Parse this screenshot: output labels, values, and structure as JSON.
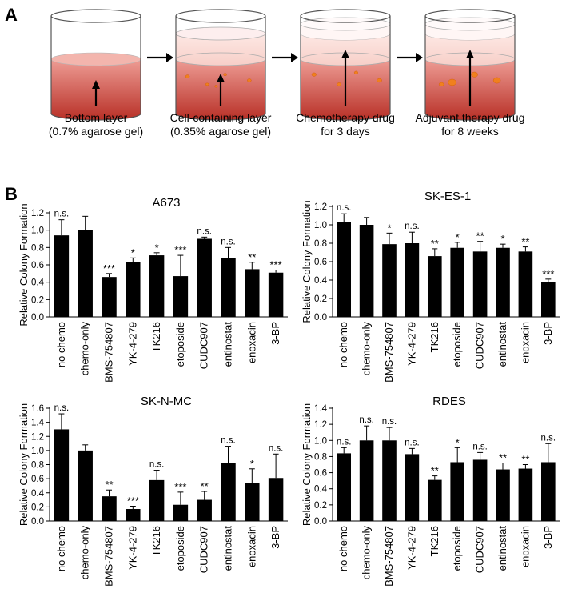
{
  "panel_a": {
    "letter": "A",
    "steps": [
      {
        "line1": "Bottom layer",
        "line2": "(0.7% agarose gel)"
      },
      {
        "line1": "Cell-containing layer",
        "line2": "(0.35% agarose gel)"
      },
      {
        "line1": "Chemotherapy drug",
        "line2": "for 3 days"
      },
      {
        "line1": "Adjuvant therapy drug",
        "line2": "for 8 weeks"
      }
    ]
  },
  "panel_b": {
    "letter": "B"
  },
  "colors": {
    "bar": "#000000",
    "gel_dark": "#c0392b",
    "gel_light": "#f6c9c2",
    "colony": "#f0801e"
  },
  "chart_data": [
    {
      "type": "bar",
      "title": "A673",
      "ylabel": "Relative Colony Formation",
      "xlabel": "",
      "ylim": [
        0,
        1.2
      ],
      "yticks": [
        "0.0",
        "0.2",
        "0.4",
        "0.6",
        "0.8",
        "1.0",
        "1.2"
      ],
      "categories": [
        "no chemo",
        "chemo-only",
        "BMS-754807",
        "YK-4-279",
        "TK216",
        "etoposide",
        "CUDC907",
        "entinostat",
        "enoxacin",
        "3-BP"
      ],
      "values": [
        0.94,
        1.0,
        0.46,
        0.63,
        0.71,
        0.47,
        0.9,
        0.68,
        0.55,
        0.51
      ],
      "errors": [
        0.18,
        0.16,
        0.04,
        0.05,
        0.03,
        0.24,
        0.02,
        0.12,
        0.08,
        0.03
      ],
      "significance": [
        "n.s.",
        "",
        "***",
        "*",
        "*",
        "***",
        "n.s.",
        "n.s.",
        "**",
        "***"
      ]
    },
    {
      "type": "bar",
      "title": "SK-ES-1",
      "ylabel": "Relative Colony Formation",
      "xlabel": "",
      "ylim": [
        0,
        1.2
      ],
      "yticks": [
        "0.0",
        "0.2",
        "0.4",
        "0.6",
        "0.8",
        "1.0",
        "1.2"
      ],
      "categories": [
        "no chemo",
        "chemo-only",
        "BMS-754807",
        "YK-4-279",
        "TK216",
        "etoposide",
        "CUDC907",
        "entinostat",
        "enoxacin",
        "3-BP"
      ],
      "values": [
        1.03,
        1.0,
        0.79,
        0.8,
        0.66,
        0.75,
        0.71,
        0.75,
        0.71,
        0.38
      ],
      "errors": [
        0.09,
        0.08,
        0.12,
        0.12,
        0.08,
        0.06,
        0.11,
        0.04,
        0.05,
        0.03
      ],
      "significance": [
        "n.s.",
        "",
        "*",
        "n.s.",
        "**",
        "*",
        "**",
        "*",
        "**",
        "***"
      ]
    },
    {
      "type": "bar",
      "title": "SK-N-MC",
      "ylabel": "Relative Colony Formation",
      "xlabel": "",
      "ylim": [
        0,
        1.6
      ],
      "yticks": [
        "0.0",
        "0.2",
        "0.4",
        "0.6",
        "0.8",
        "1.0",
        "1.2",
        "1.4",
        "1.6"
      ],
      "categories": [
        "no chemo",
        "chemo-only",
        "BMS-754807",
        "YK-4-279",
        "TK216",
        "etoposide",
        "CUDC907",
        "entinostat",
        "enoxacin",
        "3-BP"
      ],
      "values": [
        1.3,
        1.0,
        0.35,
        0.17,
        0.58,
        0.23,
        0.3,
        0.82,
        0.54,
        0.61
      ],
      "errors": [
        0.22,
        0.08,
        0.09,
        0.04,
        0.14,
        0.18,
        0.12,
        0.24,
        0.2,
        0.34
      ],
      "significance": [
        "n.s.",
        "",
        "**",
        "***",
        "n.s.",
        "***",
        "**",
        "n.s.",
        "*",
        "n.s."
      ]
    },
    {
      "type": "bar",
      "title": "RDES",
      "ylabel": "Relative Colony Formation",
      "xlabel": "",
      "ylim": [
        0,
        1.4
      ],
      "yticks": [
        "0.0",
        "0.2",
        "0.4",
        "0.6",
        "0.8",
        "1.0",
        "1.2",
        "1.4"
      ],
      "categories": [
        "no chemo",
        "chemo-only",
        "BMS-754807",
        "YK-4-279",
        "TK216",
        "etoposide",
        "CUDC907",
        "entinostat",
        "enoxacin",
        "3-BP"
      ],
      "values": [
        0.84,
        1.0,
        1.0,
        0.83,
        0.51,
        0.73,
        0.76,
        0.64,
        0.65,
        0.73
      ],
      "errors": [
        0.07,
        0.18,
        0.16,
        0.07,
        0.05,
        0.18,
        0.09,
        0.08,
        0.05,
        0.23
      ],
      "significance": [
        "n.s.",
        "n.s.",
        "n.s.",
        "n.s.",
        "**",
        "*",
        "n.s.",
        "**",
        "**",
        "n.s."
      ]
    }
  ]
}
